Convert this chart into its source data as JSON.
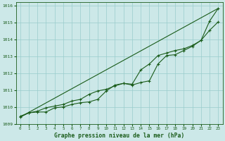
{
  "title": "Graphe pression niveau de la mer (hPa)",
  "bg_color": "#cce8e8",
  "grid_color": "#99cccc",
  "line_color": "#1a5c1a",
  "xlim": [
    -0.5,
    23.5
  ],
  "ylim": [
    1009,
    1016.2
  ],
  "yticks": [
    1009,
    1010,
    1011,
    1012,
    1013,
    1014,
    1015,
    1016
  ],
  "xticks": [
    0,
    1,
    2,
    3,
    4,
    5,
    6,
    7,
    8,
    9,
    10,
    11,
    12,
    13,
    14,
    15,
    16,
    17,
    18,
    19,
    20,
    21,
    22,
    23
  ],
  "line1": [
    1009.4,
    1009.65,
    1009.7,
    1009.7,
    1009.95,
    1010.0,
    1010.15,
    1010.25,
    1010.3,
    1010.45,
    1010.95,
    1011.3,
    1011.4,
    1011.3,
    1011.45,
    1011.55,
    1012.55,
    1013.05,
    1013.1,
    1013.35,
    1013.6,
    1013.95,
    1015.1,
    1015.85
  ],
  "line2": [
    1009.45,
    1009.65,
    1009.75,
    1009.95,
    1010.05,
    1010.15,
    1010.35,
    1010.45,
    1010.75,
    1010.95,
    1011.05,
    1011.25,
    1011.4,
    1011.35,
    1012.2,
    1012.55,
    1013.05,
    1013.2,
    1013.35,
    1013.45,
    1013.65,
    1013.95,
    1014.55,
    1015.05
  ],
  "line3_x": [
    0,
    23
  ],
  "line3_y": [
    1009.4,
    1015.85
  ]
}
